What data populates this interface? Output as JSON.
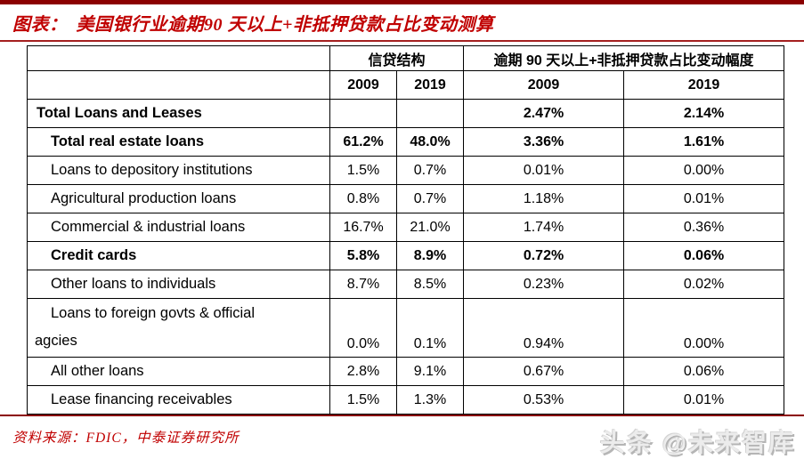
{
  "header": {
    "prefix": "图表：",
    "title": "美国银行业逾期90 天以上+非抵押贷款占比变动测算"
  },
  "table": {
    "group_headers": [
      "信贷结构",
      "逾期 90 天以上+非抵押贷款占比变动幅度"
    ],
    "year_headers": [
      "2009",
      "2019",
      "2009",
      "2019"
    ],
    "rows": [
      {
        "label": "Total Loans and Leases",
        "values": [
          "",
          "",
          "2.47%",
          "2.14%"
        ]
      },
      {
        "label": "Total real estate loans",
        "values": [
          "61.2%",
          "48.0%",
          "3.36%",
          "1.61%"
        ]
      },
      {
        "label": "Loans to depository institutions",
        "values": [
          "1.5%",
          "0.7%",
          "0.01%",
          "0.00%"
        ]
      },
      {
        "label": "Agricultural production loans",
        "values": [
          "0.8%",
          "0.7%",
          "1.18%",
          "0.01%"
        ]
      },
      {
        "label": "Commercial & industrial loans",
        "values": [
          "16.7%",
          "21.0%",
          "1.74%",
          "0.36%"
        ]
      },
      {
        "label": "Credit cards",
        "values": [
          "5.8%",
          "8.9%",
          "0.72%",
          "0.06%"
        ]
      },
      {
        "label": "Other loans to individuals",
        "values": [
          "8.7%",
          "8.5%",
          "0.23%",
          "0.02%"
        ]
      },
      {
        "label": "Loans to foreign govts & official\nagcies",
        "values": [
          "0.0%",
          "0.1%",
          "0.94%",
          "0.00%"
        ]
      },
      {
        "label": "All other loans",
        "values": [
          "2.8%",
          "9.1%",
          "0.67%",
          "0.06%"
        ]
      },
      {
        "label": "Lease financing receivables",
        "values": [
          "1.5%",
          "1.3%",
          "0.53%",
          "0.01%"
        ]
      }
    ]
  },
  "footer": {
    "source": "资料来源：FDIC，中泰证券研究所",
    "watermark": "头条 @未来智库"
  },
  "colors": {
    "dark_red": "#8B0000",
    "red": "#C00000",
    "rule_red": "#A52020",
    "border_black": "#000000"
  }
}
